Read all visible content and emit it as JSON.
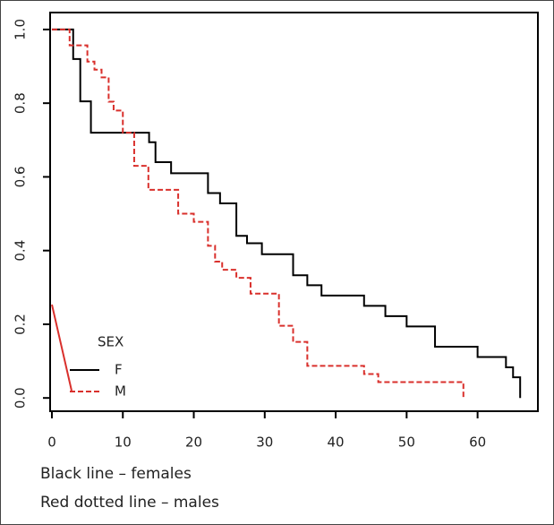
{
  "chart_data": {
    "type": "line",
    "step": "post",
    "xlim": [
      -0.25,
      68.5
    ],
    "ylim": [
      -0.036,
      1.046
    ],
    "xticks": [
      0,
      10,
      20,
      30,
      40,
      50,
      60
    ],
    "yticks": [
      {
        "value": 0,
        "label": "0.0"
      },
      0.2,
      0.4,
      0.6,
      0.8,
      {
        "value": 1,
        "label": "1.0"
      }
    ],
    "legend_title": "SEX",
    "series": [
      {
        "name": "F",
        "color": "#000000",
        "dash": false,
        "x": [
          0,
          3,
          4,
          5.5,
          13.7,
          14.6,
          16.8,
          22,
          23.7,
          26,
          27.5,
          29.6,
          34,
          36,
          38,
          44,
          47,
          50,
          54,
          60,
          64,
          65,
          66
        ],
        "values": [
          1,
          0.92,
          0.805,
          0.72,
          0.694,
          0.64,
          0.61,
          0.556,
          0.528,
          0.44,
          0.42,
          0.39,
          0.333,
          0.306,
          0.278,
          0.25,
          0.222,
          0.194,
          0.139,
          0.111,
          0.083,
          0.056,
          0
        ]
      },
      {
        "name": "M",
        "color": "#d9302c",
        "dash": true,
        "x": [
          0,
          2.5,
          5,
          6,
          7,
          8,
          8.7,
          10,
          11.6,
          13.6,
          17.8,
          20,
          22,
          23,
          24,
          26,
          28,
          32,
          34,
          36,
          44,
          46,
          58
        ],
        "values": [
          1,
          0.957,
          0.913,
          0.891,
          0.87,
          0.804,
          0.78,
          0.72,
          0.63,
          0.565,
          0.5,
          0.478,
          0.413,
          0.37,
          0.348,
          0.326,
          0.283,
          0.196,
          0.152,
          0.087,
          0.065,
          0.043,
          0
        ]
      }
    ],
    "notes": [
      "Black line – females",
      "Red dotted line – males"
    ]
  }
}
